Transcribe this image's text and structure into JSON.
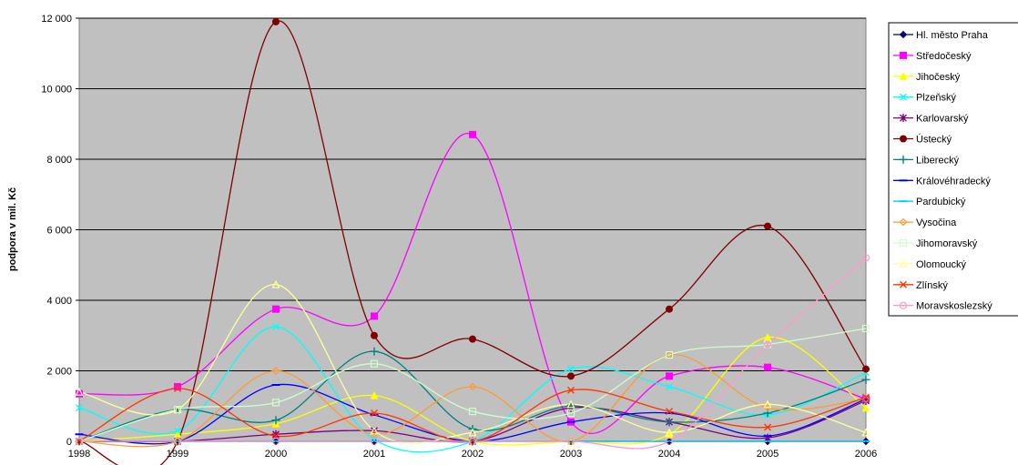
{
  "chart_data": {
    "type": "line",
    "title": "",
    "xlabel": "",
    "ylabel": "podpora v mil. Kč",
    "categories": [
      "1998",
      "1999",
      "2000",
      "2001",
      "2002",
      "2003",
      "2004",
      "2005",
      "2006"
    ],
    "ylim": [
      0,
      12000
    ],
    "y_ticks": [
      0,
      2000,
      4000,
      6000,
      8000,
      10000,
      12000
    ],
    "y_tick_labels": [
      "0",
      "2 000",
      "4 000",
      "6 000",
      "8 000",
      "10 000",
      "12 000"
    ],
    "grid": true,
    "plot_background": "#c0c0c0",
    "smooth": true,
    "legend_position": "right",
    "series": [
      {
        "name": "Hl. město Praha",
        "color": "#000080",
        "marker": "diamond",
        "values": [
          0,
          0,
          0,
          0,
          0,
          0,
          0,
          0,
          0
        ]
      },
      {
        "name": "Středočeský",
        "color": "#ff00ff",
        "marker": "square",
        "values": [
          1350,
          1550,
          3750,
          3550,
          8700,
          550,
          1850,
          2100,
          1200
        ]
      },
      {
        "name": "Jihočeský",
        "color": "#ffff00",
        "marker": "triangle",
        "values": [
          0,
          200,
          500,
          1300,
          0,
          0,
          200,
          2950,
          950
        ]
      },
      {
        "name": "Plzeňský",
        "color": "#00ffff",
        "marker": "x",
        "values": [
          950,
          300,
          3250,
          50,
          0,
          2050,
          1550,
          750,
          1950
        ]
      },
      {
        "name": "Karlovarský",
        "color": "#800080",
        "marker": "star",
        "values": [
          0,
          0,
          200,
          300,
          0,
          950,
          550,
          100,
          1150
        ]
      },
      {
        "name": "Ústecký",
        "color": "#800000",
        "marker": "circle",
        "values": [
          0,
          0,
          11900,
          3000,
          2900,
          1850,
          3750,
          6100,
          2050
        ]
      },
      {
        "name": "Liberecký",
        "color": "#008080",
        "marker": "plus",
        "values": [
          0,
          900,
          600,
          2550,
          350,
          1000,
          550,
          800,
          1750
        ]
      },
      {
        "name": "Královéhradecký",
        "color": "#0000ff",
        "marker": "dash",
        "values": [
          200,
          0,
          1600,
          750,
          0,
          550,
          800,
          150,
          1200
        ]
      },
      {
        "name": "Pardubický",
        "color": "#00ccff",
        "marker": "dash",
        "values": [
          0,
          0,
          0,
          0,
          0,
          0,
          0,
          0,
          0
        ]
      },
      {
        "name": "Vysočina",
        "color": "#ff9933",
        "marker": "open-diamond",
        "values": [
          0,
          0,
          2000,
          200,
          1550,
          0,
          2450,
          950,
          1200
        ]
      },
      {
        "name": "Jihomoravský",
        "color": "#ccffcc",
        "marker": "open-square",
        "values": [
          0,
          900,
          1100,
          2200,
          850,
          800,
          2450,
          2750,
          3200
        ]
      },
      {
        "name": "Olomoucký",
        "color": "#ffff99",
        "marker": "open-triangle",
        "values": [
          1400,
          900,
          4450,
          300,
          250,
          1050,
          250,
          1050,
          250
        ]
      },
      {
        "name": "Zlínský",
        "color": "#ff3300",
        "marker": "x",
        "values": [
          0,
          1500,
          150,
          800,
          0,
          1450,
          850,
          400,
          1250
        ]
      },
      {
        "name": "Moravskoslezský",
        "color": "#ff99cc",
        "marker": "open-circle",
        "values": [
          0,
          0,
          0,
          0,
          0,
          0,
          0,
          2750,
          5200
        ]
      }
    ]
  }
}
